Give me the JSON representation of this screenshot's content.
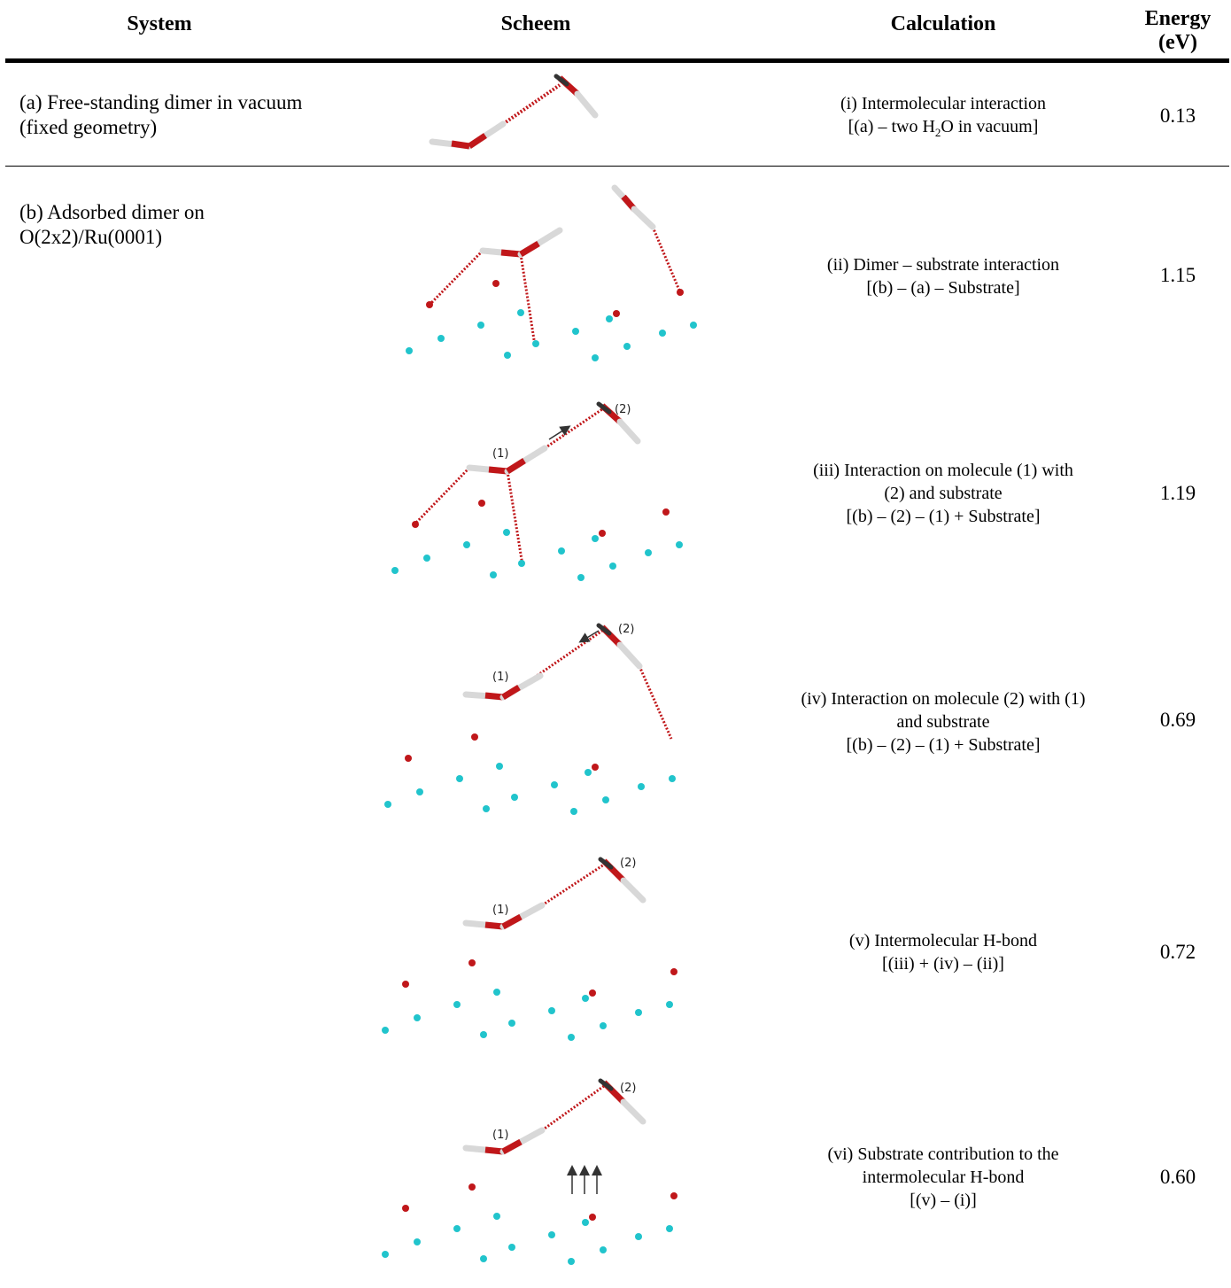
{
  "headers": {
    "system": "System",
    "scheme": "Scheem",
    "calculation": "Calculation",
    "energy_line1": "Energy",
    "energy_line2": "(eV)"
  },
  "rows": [
    {
      "system": "(a) Free-standing dimer in vacuum",
      "system2": "(fixed geometry)",
      "calc": [
        "(i) Intermolecular interaction",
        "[(a) – two H",
        "2",
        "O in vacuum]"
      ],
      "energy": "0.13"
    },
    {
      "system": "(b) Adsorbed dimer on",
      "system2": "O(2x2)/Ru(0001)",
      "calc": [
        "(ii) Dimer – substrate interaction",
        "[(b) – (a) – Substrate]"
      ],
      "energy": "1.15"
    },
    {
      "calc": [
        "(iii) Interaction on molecule (1) with",
        "(2) and substrate",
        "[(b) – (2) – (1) + Substrate]"
      ],
      "energy": "1.19"
    },
    {
      "calc": [
        "(iv) Interaction on molecule (2) with (1)",
        "and substrate",
        "[(b) – (2) – (1) + Substrate]"
      ],
      "energy": "0.69"
    },
    {
      "calc": [
        "(v) Intermolecular H-bond",
        "[(iii) + (iv) – (ii)]"
      ],
      "energy": "0.72"
    },
    {
      "calc": [
        "(vi) Substrate contribution to the",
        "intermolecular H-bond",
        "[(v) – (i)]"
      ],
      "energy": "0.60"
    }
  ],
  "scheme_labels": {
    "mol1": "(1)",
    "mol2": "(2)"
  },
  "colors": {
    "oxygen": "#c0171a",
    "hydrogen": "#d8d8d8",
    "ruthenium": "#21c4cc",
    "hbond": "#c0171a"
  }
}
